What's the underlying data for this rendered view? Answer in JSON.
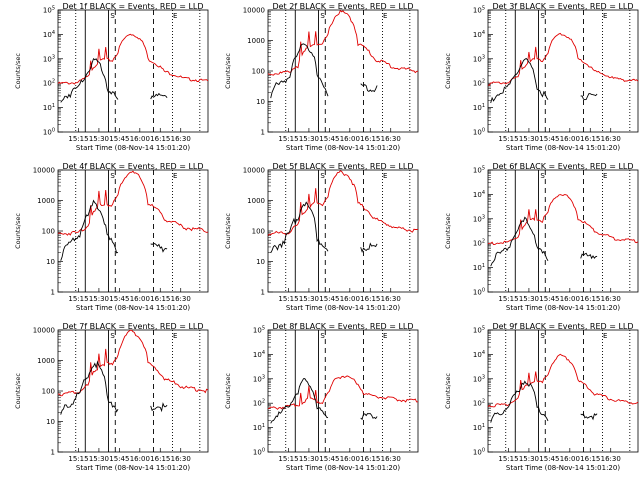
{
  "figure": {
    "background": "#ffffff",
    "colors": {
      "events": "#000000",
      "lld": "#e00000"
    },
    "xtitle": "Start Time (08-Nov-14 15:01:20)"
  },
  "chart_data": [
    {
      "type": "line",
      "title": "Det 1f BLACK = Events, RED = LLD",
      "ylabel": "Counts/sec",
      "yscale": "log",
      "ylim_exp": [
        0,
        5
      ],
      "yticks": [
        "10^0",
        "10^1",
        "10^2",
        "10^3",
        "10^4",
        "10^5"
      ],
      "xticks": [
        "15:15",
        "15:30",
        "15:45",
        "16:00",
        "16:15",
        "16:30"
      ],
      "xlim_min": [
        0,
        110
      ],
      "markers": [
        "S",
        "E"
      ],
      "series": []
    },
    {
      "type": "line",
      "title": "Det 2f BLACK = Events, RED = LLD",
      "ylabel": "Counts/sec",
      "yscale": "log",
      "ylim_exp": [
        0,
        4
      ],
      "yticks": [
        "1",
        "10",
        "100",
        "1000",
        "10000"
      ],
      "xticks": [
        "15:15",
        "15:30",
        "15:45",
        "16:00",
        "16:15",
        "16:30"
      ],
      "xlim_min": [
        0,
        110
      ],
      "markers": [
        "S",
        "E"
      ],
      "series": []
    },
    {
      "type": "line",
      "title": "Det 3f BLACK = Events, RED = LLD",
      "ylabel": "Counts/sec",
      "yscale": "log",
      "ylim_exp": [
        0,
        5
      ],
      "yticks": [
        "10^0",
        "10^1",
        "10^2",
        "10^3",
        "10^4",
        "10^5"
      ],
      "xticks": [
        "15:15",
        "15:30",
        "15:45",
        "16:00",
        "16:15",
        "16:30"
      ],
      "xlim_min": [
        0,
        110
      ],
      "markers": [
        "S",
        "E"
      ],
      "series": []
    },
    {
      "type": "line",
      "title": "Det 4f BLACK = Events, RED = LLD",
      "ylabel": "Counts/sec",
      "yscale": "log",
      "ylim_exp": [
        0,
        4
      ],
      "yticks": [
        "1",
        "10",
        "100",
        "1000",
        "10000"
      ],
      "xticks": [
        "15:15",
        "15:30",
        "15:45",
        "16:00",
        "16:15",
        "16:30"
      ],
      "xlim_min": [
        0,
        110
      ],
      "markers": [
        "S",
        "E"
      ],
      "series": []
    },
    {
      "type": "line",
      "title": "Det 5f BLACK = Events, RED = LLD",
      "ylabel": "Counts/sec",
      "yscale": "log",
      "ylim_exp": [
        0,
        4
      ],
      "yticks": [
        "1",
        "10",
        "100",
        "1000",
        "10000"
      ],
      "xticks": [
        "15:15",
        "15:30",
        "15:45",
        "16:00",
        "16:15",
        "16:30"
      ],
      "xlim_min": [
        0,
        110
      ],
      "markers": [
        "S",
        "E"
      ],
      "series": []
    },
    {
      "type": "line",
      "title": "Det 6f BLACK = Events, RED = LLD",
      "ylabel": "Counts/sec",
      "yscale": "log",
      "ylim_exp": [
        0,
        5
      ],
      "yticks": [
        "10^0",
        "10^1",
        "10^2",
        "10^3",
        "10^4",
        "10^5"
      ],
      "xticks": [
        "15:15",
        "15:30",
        "15:45",
        "16:00",
        "16:15",
        "16:30"
      ],
      "xlim_min": [
        0,
        110
      ],
      "markers": [
        "S",
        "E"
      ],
      "series": []
    },
    {
      "type": "line",
      "title": "Det 7f BLACK = Events, RED = LLD",
      "ylabel": "Counts/sec",
      "yscale": "log",
      "ylim_exp": [
        0,
        4
      ],
      "yticks": [
        "1",
        "10",
        "100",
        "1000",
        "10000"
      ],
      "xticks": [
        "15:15",
        "15:30",
        "15:45",
        "16:00",
        "16:15",
        "16:30"
      ],
      "xlim_min": [
        0,
        110
      ],
      "markers": [
        "S",
        "E"
      ],
      "series": []
    },
    {
      "type": "line",
      "title": "Det 8f BLACK = Events, RED = LLD",
      "ylabel": "Counts/sec",
      "yscale": "log",
      "ylim_exp": [
        0,
        5
      ],
      "yticks": [
        "10^0",
        "10^1",
        "10^2",
        "10^3",
        "10^4",
        "10^5"
      ],
      "xticks": [
        "15:15",
        "15:30",
        "15:45",
        "16:00",
        "16:15",
        "16:30"
      ],
      "xlim_min": [
        0,
        110
      ],
      "markers": [
        "S",
        "E"
      ],
      "series": []
    },
    {
      "type": "line",
      "title": "Det 9f BLACK = Events, RED = LLD",
      "ylabel": "Counts/sec",
      "yscale": "log",
      "ylim_exp": [
        0,
        5
      ],
      "yticks": [
        "10^0",
        "10^1",
        "10^2",
        "10^3",
        "10^4",
        "10^5"
      ],
      "xticks": [
        "15:15",
        "15:30",
        "15:45",
        "16:00",
        "16:15",
        "16:30"
      ],
      "xlim_min": [
        0,
        110
      ],
      "markers": [
        "S",
        "E"
      ],
      "series": []
    }
  ]
}
